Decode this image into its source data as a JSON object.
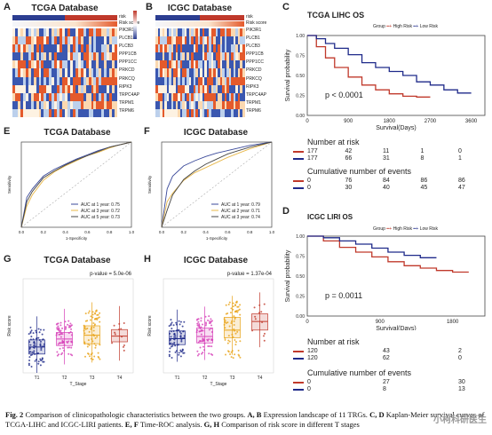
{
  "panels": {
    "A": {
      "label": "A",
      "title": "TCGA Database",
      "annotation_label": "risk",
      "risk_score_label": "Risk score",
      "risk_legend": [
        "risk",
        "High",
        "Low"
      ],
      "genes": [
        "PIK3R1",
        "PLCB1",
        "PLCB3",
        "PPP1CB",
        "PPP1CC",
        "PRKCD",
        "PRKCQ",
        "RIPK3",
        "TRPC4AP",
        "TRPM1",
        "TRPM6"
      ],
      "scale": [
        "2",
        "1",
        "0",
        "-1",
        "-2"
      ]
    },
    "B": {
      "label": "B",
      "title": "ICGC Database",
      "annotation_label": "risk",
      "risk_score_label": "Risk score",
      "genes": [
        "PIK3R1",
        "PLCB1",
        "PLCB3",
        "PPP1CB",
        "PPP1CC",
        "PRKCD",
        "PRKCQ",
        "RIPK3",
        "TRPC4AP",
        "TRPM1",
        "TRPM6"
      ]
    },
    "C": {
      "label": "C",
      "title": "TCGA LIHC OS",
      "legend_title": "Group",
      "legend_items": [
        "High Risk",
        "Low Risk"
      ],
      "ylabel": "Survival probability",
      "xlabel": "Survival(Days)",
      "pvalue": "p < 0.0001",
      "at_risk_title": "Number at risk",
      "events_title": "Cumulative number of events",
      "x_ticks": [
        "0",
        "900",
        "1800",
        "2700",
        "3600"
      ],
      "y_ticks": [
        "1.00",
        "0.75",
        "0.50",
        "0.25",
        "0.00"
      ],
      "at_risk_high": [
        "177",
        "42",
        "11",
        "1",
        "0"
      ],
      "at_risk_low": [
        "177",
        "66",
        "31",
        "8",
        "1"
      ],
      "events_high": [
        "0",
        "76",
        "84",
        "86",
        "86"
      ],
      "events_low": [
        "0",
        "30",
        "40",
        "45",
        "47"
      ]
    },
    "D": {
      "label": "D",
      "title": "ICGC LIRI OS",
      "legend_title": "Group",
      "legend_items": [
        "High Risk",
        "Low Risk"
      ],
      "ylabel": "Survival probability",
      "xlabel": "Survival(Days)",
      "pvalue": "p = 0.0011",
      "at_risk_title": "Number at risk",
      "events_title": "Cumulative number of events",
      "x_ticks": [
        "0",
        "900",
        "1800"
      ],
      "y_ticks": [
        "1.00",
        "0.75",
        "0.50",
        "0.25",
        "0.00"
      ],
      "at_risk_high": [
        "120",
        "43",
        "2"
      ],
      "at_risk_low": [
        "120",
        "62",
        "0"
      ],
      "events_high": [
        "0",
        "27",
        "30"
      ],
      "events_low": [
        "0",
        "8",
        "13"
      ]
    },
    "E": {
      "label": "E",
      "title": "TCGA Database",
      "xlabel": "1-Specificity",
      "ylabel": "Sensitivity",
      "legend": [
        "AUC at 1 year: 0.75",
        "AUC at 3 year: 0.72",
        "AUC at 5 year: 0.73"
      ],
      "x_ticks": [
        "0.0",
        "0.2",
        "0.4",
        "0.6",
        "0.8",
        "1.0"
      ]
    },
    "F": {
      "label": "F",
      "title": "ICGC Database",
      "xlabel": "1-Specificity",
      "ylabel": "Sensitivity",
      "legend": [
        "AUC at 1 year: 0.79",
        "AUC at 2 year: 0.71",
        "AUC at 3 year: 0.74"
      ],
      "x_ticks": [
        "0.0",
        "0.2",
        "0.4",
        "0.6",
        "0.8",
        "1.0"
      ]
    },
    "G": {
      "label": "G",
      "title": "TCGA Database",
      "pvalue": "p-value = 5.0e-06",
      "xlabel": "T_Stage",
      "ylabel": "Risk score",
      "categories": [
        "T1",
        "T2",
        "T3",
        "T4"
      ]
    },
    "H": {
      "label": "H",
      "title": "ICGC Database",
      "pvalue": "p-value = 1.37e-04",
      "xlabel": "T_Stage",
      "ylabel": "Risk score",
      "categories": [
        "T1",
        "T2",
        "T3",
        "T4"
      ]
    }
  },
  "colors": {
    "high": "#c0392b",
    "low": "#1f2a8a",
    "auc1": "#3b4a9a",
    "auc3": "#e8b84a",
    "auc5": "#2c3e91",
    "box_T1": "#1f2a8a",
    "box_T2": "#d63fb8",
    "box_T3": "#e8a317",
    "box_T4": "#c0392b"
  },
  "chart_data": [
    {
      "type": "line",
      "panel": "C",
      "title": "TCGA LIHC OS",
      "xlabel": "Survival(Days)",
      "ylabel": "Survival probability",
      "xlim": [
        0,
        3900
      ],
      "ylim": [
        0,
        1
      ],
      "series": [
        {
          "name": "High Risk",
          "x": [
            0,
            200,
            400,
            600,
            900,
            1200,
            1500,
            1800,
            2100,
            2400,
            2700
          ],
          "y": [
            1.0,
            0.86,
            0.72,
            0.6,
            0.48,
            0.38,
            0.32,
            0.27,
            0.24,
            0.23,
            0.23
          ]
        },
        {
          "name": "Low Risk",
          "x": [
            0,
            200,
            400,
            600,
            900,
            1200,
            1500,
            1800,
            2100,
            2400,
            2700,
            3000,
            3300,
            3600
          ],
          "y": [
            1.0,
            0.96,
            0.9,
            0.84,
            0.76,
            0.66,
            0.6,
            0.55,
            0.5,
            0.42,
            0.38,
            0.32,
            0.28,
            0.28
          ]
        }
      ]
    },
    {
      "type": "line",
      "panel": "D",
      "title": "ICGC LIRI OS",
      "xlabel": "Survival(Days)",
      "ylabel": "Survival probability",
      "xlim": [
        0,
        2200
      ],
      "ylim": [
        0,
        1
      ],
      "series": [
        {
          "name": "High Risk",
          "x": [
            0,
            200,
            400,
            600,
            800,
            1000,
            1200,
            1400,
            1600,
            1800,
            2000
          ],
          "y": [
            1.0,
            0.94,
            0.86,
            0.8,
            0.74,
            0.68,
            0.63,
            0.6,
            0.57,
            0.55,
            0.55
          ]
        },
        {
          "name": "Low Risk",
          "x": [
            0,
            200,
            400,
            600,
            800,
            1000,
            1200,
            1400,
            1600
          ],
          "y": [
            1.0,
            0.98,
            0.94,
            0.9,
            0.85,
            0.8,
            0.76,
            0.73,
            0.73
          ]
        }
      ]
    },
    {
      "type": "line",
      "panel": "E",
      "title": "TCGA Database",
      "xlabel": "1-Specificity",
      "ylabel": "Sensitivity",
      "xlim": [
        0,
        1
      ],
      "ylim": [
        0,
        1
      ],
      "series": [
        {
          "name": "AUC at 1 year: 0.75",
          "x": [
            0,
            0.05,
            0.1,
            0.2,
            0.3,
            0.4,
            0.5,
            0.6,
            0.7,
            0.8,
            0.9,
            1.0
          ],
          "y": [
            0,
            0.35,
            0.45,
            0.6,
            0.68,
            0.74,
            0.8,
            0.85,
            0.9,
            0.94,
            0.97,
            1.0
          ]
        },
        {
          "name": "AUC at 3 year: 0.72",
          "x": [
            0,
            0.05,
            0.1,
            0.2,
            0.3,
            0.4,
            0.5,
            0.6,
            0.7,
            0.8,
            0.9,
            1.0
          ],
          "y": [
            0,
            0.25,
            0.38,
            0.55,
            0.65,
            0.72,
            0.78,
            0.84,
            0.88,
            0.93,
            0.97,
            1.0
          ]
        },
        {
          "name": "AUC at 5 year: 0.73",
          "x": [
            0,
            0.05,
            0.1,
            0.2,
            0.3,
            0.4,
            0.5,
            0.6,
            0.7,
            0.8,
            0.9,
            1.0
          ],
          "y": [
            0,
            0.3,
            0.42,
            0.58,
            0.66,
            0.73,
            0.79,
            0.84,
            0.89,
            0.94,
            0.97,
            1.0
          ]
        }
      ]
    },
    {
      "type": "line",
      "panel": "F",
      "title": "ICGC Database",
      "xlabel": "1-Specificity",
      "ylabel": "Sensitivity",
      "xlim": [
        0,
        1
      ],
      "ylim": [
        0,
        1
      ],
      "series": [
        {
          "name": "AUC at 1 year: 0.79",
          "x": [
            0,
            0.05,
            0.1,
            0.2,
            0.3,
            0.4,
            0.5,
            0.6,
            0.7,
            0.8,
            0.9,
            1.0
          ],
          "y": [
            0,
            0.45,
            0.6,
            0.72,
            0.78,
            0.83,
            0.87,
            0.9,
            0.93,
            0.96,
            0.98,
            1.0
          ]
        },
        {
          "name": "AUC at 2 year: 0.71",
          "x": [
            0,
            0.05,
            0.1,
            0.2,
            0.3,
            0.4,
            0.5,
            0.6,
            0.7,
            0.8,
            0.9,
            1.0
          ],
          "y": [
            0,
            0.3,
            0.4,
            0.55,
            0.64,
            0.7,
            0.76,
            0.82,
            0.87,
            0.92,
            0.96,
            1.0
          ]
        },
        {
          "name": "AUC at 3 year: 0.74",
          "x": [
            0,
            0.05,
            0.1,
            0.2,
            0.3,
            0.4,
            0.5,
            0.6,
            0.7,
            0.8,
            0.9,
            1.0
          ],
          "y": [
            0,
            0.2,
            0.38,
            0.56,
            0.66,
            0.74,
            0.8,
            0.86,
            0.9,
            0.94,
            0.97,
            1.0
          ]
        }
      ]
    },
    {
      "type": "box",
      "panel": "G",
      "title": "TCGA Database",
      "xlabel": "T_Stage",
      "ylabel": "Risk score",
      "categories": [
        "T1",
        "T2",
        "T3",
        "T4"
      ],
      "median": [
        0.55,
        0.72,
        0.8,
        0.78
      ],
      "q1": [
        0.4,
        0.58,
        0.62,
        0.66
      ],
      "q3": [
        0.7,
        0.86,
        1.0,
        0.92
      ],
      "ylim": [
        0,
        2
      ]
    },
    {
      "type": "box",
      "panel": "H",
      "title": "ICGC Database",
      "xlabel": "T_Stage",
      "ylabel": "Risk score",
      "categories": [
        "T1",
        "T2",
        "T3",
        "T4"
      ],
      "median": [
        0.8,
        0.85,
        1.0,
        1.2
      ],
      "q1": [
        0.66,
        0.7,
        0.82,
        1.0
      ],
      "q3": [
        0.98,
        1.05,
        1.3,
        1.38
      ],
      "ylim": [
        0,
        2.2
      ]
    }
  ],
  "caption": {
    "fig": "Fig. 2",
    "text1": "Comparison of clinicopathologic characteristics between the two groups.",
    "ab": "A, B",
    "text2": "Expression landscape of 11 TRGs.",
    "cd": "C, D",
    "text3": "Kaplan-Meier survival curves of TCGA-LIHC and ICGC-LIRI patients.",
    "ef": "E, F",
    "text4": "Time-ROC analysis.",
    "gh": "G, H",
    "text5": "Comparison of risk score in different T stages"
  },
  "watermark": "小柯科研医生"
}
